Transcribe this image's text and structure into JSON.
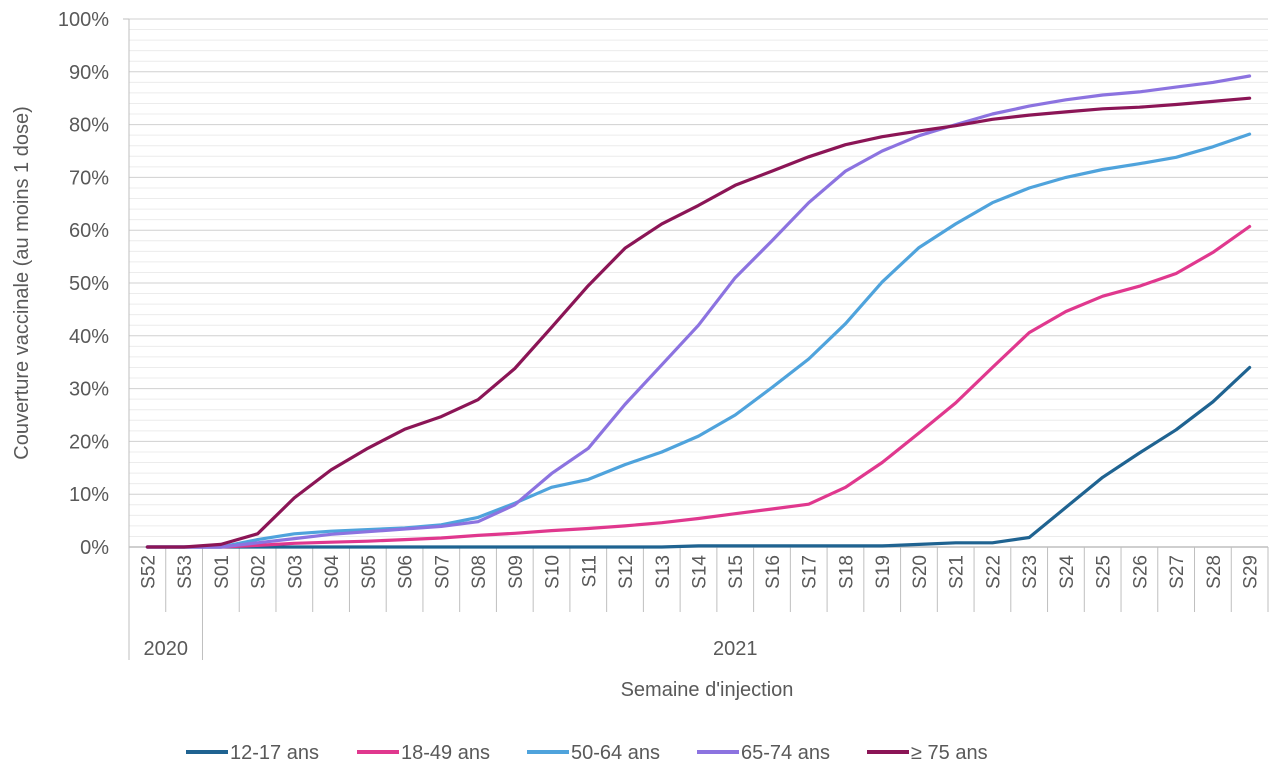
{
  "chart_data": {
    "type": "line",
    "title": "",
    "xlabel": "Semaine d'injection",
    "ylabel": "Couverture vaccinale (au moins 1 dose)",
    "ylim": [
      0,
      100
    ],
    "y_ticks": [
      "0%",
      "10%",
      "20%",
      "30%",
      "40%",
      "50%",
      "60%",
      "70%",
      "80%",
      "90%",
      "100%"
    ],
    "grid": true,
    "legend_position": "bottom",
    "categories": [
      "S52",
      "S53",
      "S01",
      "S02",
      "S03",
      "S04",
      "S05",
      "S06",
      "S07",
      "S08",
      "S09",
      "S10",
      "S11",
      "S12",
      "S13",
      "S14",
      "S15",
      "S16",
      "S17",
      "S18",
      "S19",
      "S20",
      "S21",
      "S22",
      "S23",
      "S24",
      "S25",
      "S26",
      "S27",
      "S28",
      "S29"
    ],
    "year_groups": [
      {
        "label": "2020",
        "count": 2
      },
      {
        "label": "2021",
        "count": 29
      }
    ],
    "series": [
      {
        "name": "12-17 ans",
        "color": "#1f6391",
        "values": [
          0,
          0,
          0,
          0,
          0,
          0,
          0,
          0,
          0,
          0,
          0,
          0,
          0,
          0,
          0,
          0.2,
          0.2,
          0.2,
          0.2,
          0.2,
          0.2,
          0.5,
          0.8,
          0.8,
          1.8,
          7.5,
          13.2,
          17.8,
          22.2,
          27.5,
          34.0
        ]
      },
      {
        "name": "18-49 ans",
        "color": "#e0388e",
        "values": [
          0,
          0,
          0,
          0.3,
          0.7,
          0.9,
          1.1,
          1.4,
          1.7,
          2.2,
          2.6,
          3.1,
          3.5,
          4.0,
          4.6,
          5.4,
          6.3,
          7.2,
          8.1,
          11.3,
          16.0,
          21.6,
          27.3,
          34.0,
          40.6,
          44.6,
          47.5,
          49.4,
          51.8,
          55.8,
          60.7
        ]
      },
      {
        "name": "50-64 ans",
        "color": "#4fa3dc",
        "values": [
          0,
          0,
          0,
          1.4,
          2.5,
          3.0,
          3.3,
          3.6,
          4.2,
          5.6,
          8.3,
          11.3,
          12.8,
          15.6,
          18.0,
          21.0,
          25.0,
          30.2,
          35.6,
          42.3,
          50.2,
          56.7,
          61.2,
          65.2,
          68.0,
          70.0,
          71.5,
          72.6,
          73.8,
          75.8,
          78.2
        ]
      },
      {
        "name": "65-74 ans",
        "color": "#8c73e0",
        "values": [
          0,
          0,
          0,
          0.8,
          1.6,
          2.4,
          2.9,
          3.4,
          3.9,
          4.8,
          8.0,
          13.9,
          18.7,
          27.0,
          34.5,
          42.0,
          51.0,
          58.0,
          65.2,
          71.2,
          75.0,
          77.9,
          80.0,
          82.0,
          83.5,
          84.7,
          85.6,
          86.2,
          87.1,
          88.0,
          89.2
        ]
      },
      {
        "name": "≥ 75 ans",
        "color": "#8b1556",
        "values": [
          0,
          0,
          0.5,
          2.5,
          9.3,
          14.6,
          18.7,
          22.3,
          24.7,
          27.9,
          33.8,
          41.6,
          49.5,
          56.6,
          61.2,
          64.7,
          68.5,
          71.2,
          73.9,
          76.2,
          77.7,
          78.8,
          79.8,
          81.0,
          81.8,
          82.4,
          83.0,
          83.3,
          83.8,
          84.4,
          85.0
        ]
      }
    ]
  }
}
